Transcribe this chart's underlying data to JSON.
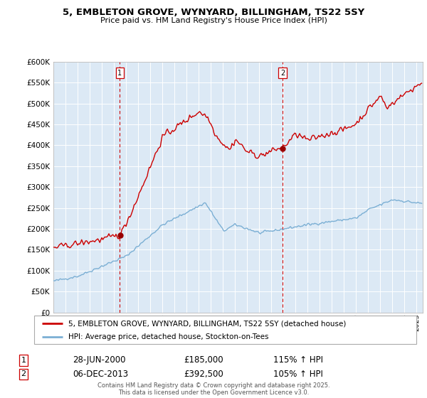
{
  "title": "5, EMBLETON GROVE, WYNYARD, BILLINGHAM, TS22 5SY",
  "subtitle": "Price paid vs. HM Land Registry's House Price Index (HPI)",
  "legend_line1": "5, EMBLETON GROVE, WYNYARD, BILLINGHAM, TS22 5SY (detached house)",
  "legend_line2": "HPI: Average price, detached house, Stockton-on-Tees",
  "sale1_date": "28-JUN-2000",
  "sale1_price": "£185,000",
  "sale1_hpi": "115% ↑ HPI",
  "sale1_year": 2000.49,
  "sale1_value": 185000,
  "sale2_date": "06-DEC-2013",
  "sale2_price": "£392,500",
  "sale2_hpi": "105% ↑ HPI",
  "sale2_year": 2013.92,
  "sale2_value": 392500,
  "footer": "Contains HM Land Registry data © Crown copyright and database right 2025.\nThis data is licensed under the Open Government Licence v3.0.",
  "red_color": "#cc0000",
  "blue_color": "#7bafd4",
  "bg_fill_color": "#dce9f5",
  "grid_color": "#ffffff",
  "plot_bg": "#dce9f5",
  "ylim": [
    0,
    600000
  ],
  "xlim_start": 1995.0,
  "xlim_end": 2025.5
}
